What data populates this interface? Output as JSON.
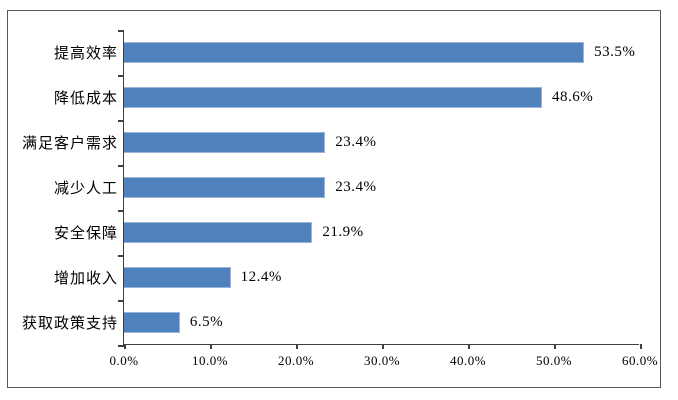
{
  "chart_data": {
    "type": "bar",
    "orientation": "horizontal",
    "title": "",
    "categories": [
      "提高效率",
      "降低成本",
      "满足客户需求",
      "减少人工",
      "安全保障",
      "增加收入",
      "获取政策支持"
    ],
    "values": [
      53.5,
      48.6,
      23.4,
      23.4,
      21.9,
      12.4,
      6.5
    ],
    "value_labels": [
      "53.5%",
      "48.6%",
      "23.4%",
      "23.4%",
      "21.9%",
      "12.4%",
      "6.5%"
    ],
    "x_tick_labels": [
      "0.0%",
      "10.0%",
      "20.0%",
      "30.0%",
      "40.0%",
      "50.0%",
      "60.0%"
    ],
    "xlim": [
      0,
      60
    ],
    "grid": false,
    "legend": false,
    "colors": {
      "bar_fill": "#4f81bd",
      "bar_edge": "#9ab5d9",
      "axis_line": "#404040",
      "frame_border": "#595959",
      "text": "#000000",
      "background": "#ffffff"
    }
  }
}
